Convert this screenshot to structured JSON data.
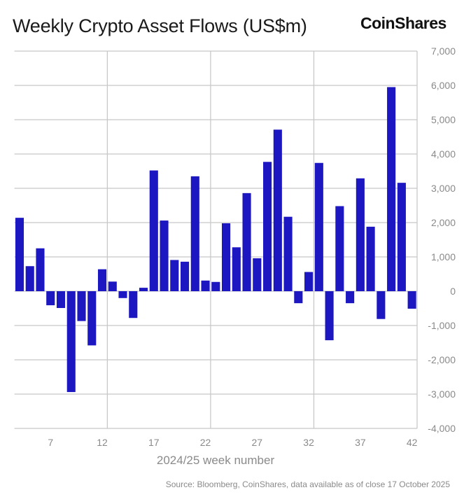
{
  "chart_data": {
    "type": "bar",
    "title": "Weekly Crypto Asset Flows (US$m)",
    "xlabel": "2024/25 week number",
    "ylabel": "",
    "x": [
      4,
      5,
      6,
      7,
      8,
      9,
      10,
      11,
      12,
      13,
      14,
      15,
      16,
      17,
      18,
      19,
      20,
      21,
      22,
      23,
      24,
      25,
      26,
      27,
      28,
      29,
      30,
      31,
      32,
      33,
      34,
      35,
      36,
      37,
      38,
      39,
      40,
      41,
      42
    ],
    "values": [
      2140,
      730,
      1250,
      -410,
      -490,
      -2940,
      -870,
      -1580,
      640,
      280,
      -200,
      -780,
      100,
      3520,
      2060,
      910,
      860,
      3350,
      310,
      270,
      1980,
      1280,
      2860,
      960,
      3770,
      4710,
      2170,
      -350,
      560,
      3740,
      -1430,
      2480,
      -350,
      3290,
      1880,
      -810,
      5950,
      3160,
      -510
    ],
    "ylim": [
      -4000,
      7000
    ],
    "xlim": [
      3.5,
      42.5
    ],
    "yticks": [
      -4000,
      -3000,
      -2000,
      -1000,
      0,
      1000,
      2000,
      3000,
      4000,
      5000,
      6000,
      7000
    ],
    "ytick_labels": [
      "-4,000",
      "-3,000",
      "-2,000",
      "-1,000",
      "0",
      "1,000",
      "2,000",
      "3,000",
      "4,000",
      "5,000",
      "6,000",
      "7,000"
    ],
    "xticks": [
      7,
      12,
      17,
      22,
      27,
      32,
      37,
      42
    ],
    "xtick_labels": [
      "7",
      "12",
      "17",
      "22",
      "27",
      "32",
      "37",
      "42"
    ],
    "vertical_grid_at": [
      12.5,
      22.5,
      32.5,
      42.5
    ],
    "y_axis_position": "right",
    "grid": true,
    "bar_color": "#1c17c0",
    "grid_color": "#c8c8c8"
  },
  "logo": "CoinShares",
  "source": "Source: Bloomberg, CoinShares, data available as of close 17 October 2025"
}
